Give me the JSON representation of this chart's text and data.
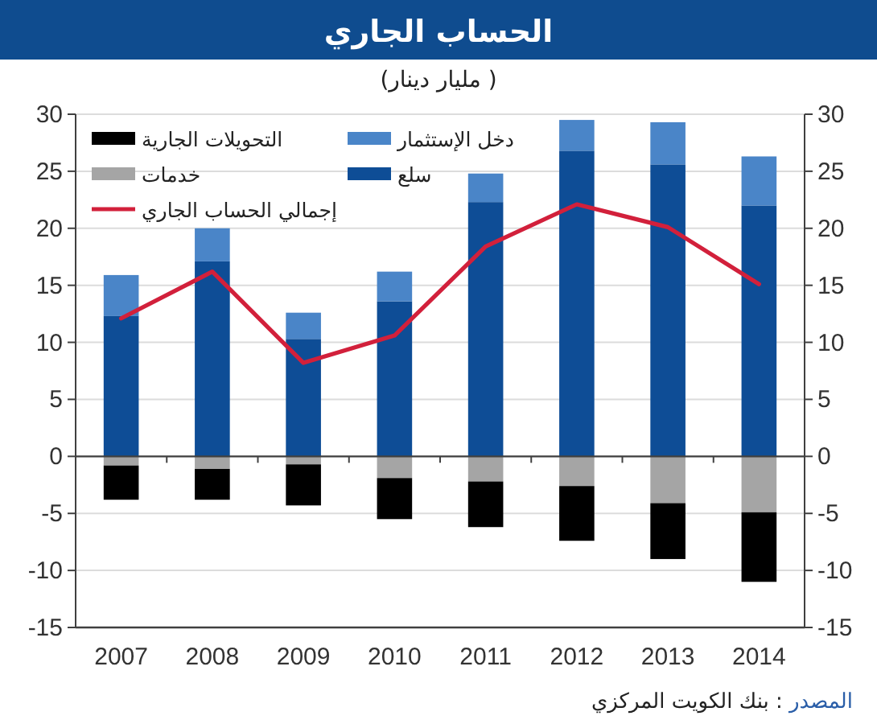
{
  "chart_data": {
    "type": "bar",
    "title": "الحساب الجاري",
    "subtitle": "(مليار دينار )",
    "categories": [
      "2007",
      "2008",
      "2009",
      "2010",
      "2011",
      "2012",
      "2013",
      "2014"
    ],
    "stacked": true,
    "series": [
      {
        "name": "سلع",
        "color": "#0e4d96",
        "values": [
          12.3,
          17.1,
          10.3,
          13.6,
          22.3,
          26.8,
          25.6,
          22.0
        ]
      },
      {
        "name": "دخل الإستثمار",
        "color": "#4a85c8",
        "values": [
          3.6,
          2.9,
          2.3,
          2.6,
          2.5,
          2.7,
          3.7,
          4.3
        ]
      },
      {
        "name": "خدمات",
        "color": "#a5a5a5",
        "values": [
          -0.8,
          -1.1,
          -0.7,
          -1.9,
          -2.2,
          -2.6,
          -4.1,
          -4.9
        ]
      },
      {
        "name": "التحويلات الجارية",
        "color": "#000000",
        "values": [
          -3.0,
          -2.7,
          -3.6,
          -3.6,
          -4.0,
          -4.8,
          -4.9,
          -6.1
        ]
      },
      {
        "name": "إجمالي الحساب الجاري",
        "type": "line",
        "color": "#d2203b",
        "values": [
          12.1,
          16.2,
          8.2,
          10.6,
          18.4,
          22.1,
          20.1,
          15.1
        ]
      }
    ],
    "ylim": [
      -15,
      30
    ],
    "yticks": [
      -15,
      -10,
      -5,
      0,
      5,
      10,
      15,
      20,
      25,
      30
    ],
    "y2lim": [
      -15,
      30
    ],
    "y2ticks": [
      -15,
      -10,
      -5,
      0,
      5,
      10,
      15,
      20,
      25,
      30
    ],
    "grid": "y",
    "legend": "top left",
    "line_style": "solid",
    "annotations": [
      "المصدر : بنك الكويت المركزي"
    ]
  }
}
